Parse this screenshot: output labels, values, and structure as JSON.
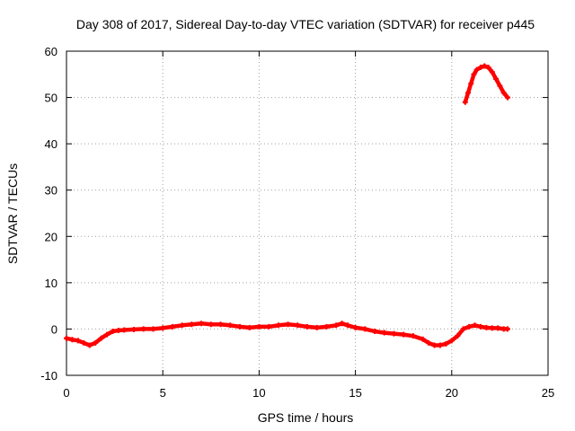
{
  "chart_data": {
    "type": "line",
    "title": "Day 308 of 2017, Sidereal Day-to-day VTEC variation (SDTVAR) for receiver p445",
    "xlabel": "GPS time / hours",
    "ylabel": "SDTVAR / TECUs",
    "xlim": [
      0,
      25
    ],
    "ylim": [
      -10,
      60
    ],
    "xticks": [
      0,
      5,
      10,
      15,
      20,
      25
    ],
    "yticks": [
      -10,
      0,
      10,
      20,
      30,
      40,
      50,
      60
    ],
    "grid": true,
    "series_color": "#ff0000",
    "series": [
      {
        "name": "SDTVAR segment 1",
        "x": [
          0.0,
          0.3,
          0.6,
          0.9,
          1.2,
          1.5,
          1.8,
          2.1,
          2.4,
          2.7,
          3.0,
          3.5,
          4.0,
          4.5,
          5.0,
          5.5,
          6.0,
          6.5,
          7.0,
          7.5,
          8.0,
          8.5,
          9.0,
          9.5,
          10.0,
          10.5,
          11.0,
          11.5,
          12.0,
          12.5,
          13.0,
          13.5,
          14.0,
          14.3,
          14.6,
          15.0,
          15.5,
          16.0,
          16.5,
          17.0,
          17.5,
          18.0,
          18.5,
          18.8,
          19.1,
          19.4,
          19.7,
          20.0,
          20.3,
          20.6,
          20.9,
          21.2,
          21.5,
          21.8,
          22.1,
          22.4,
          22.7,
          22.9
        ],
        "y": [
          -2.0,
          -2.3,
          -2.5,
          -3.0,
          -3.5,
          -3.0,
          -2.0,
          -1.2,
          -0.5,
          -0.3,
          -0.2,
          -0.1,
          0.0,
          0.0,
          0.2,
          0.5,
          0.8,
          1.0,
          1.2,
          1.0,
          1.0,
          0.8,
          0.5,
          0.3,
          0.5,
          0.5,
          0.8,
          1.0,
          0.8,
          0.5,
          0.3,
          0.5,
          0.8,
          1.2,
          0.8,
          0.3,
          0.0,
          -0.5,
          -0.8,
          -1.0,
          -1.2,
          -1.5,
          -2.2,
          -3.0,
          -3.5,
          -3.5,
          -3.2,
          -2.5,
          -1.5,
          0.0,
          0.5,
          0.8,
          0.5,
          0.3,
          0.2,
          0.2,
          0.0,
          0.0
        ]
      },
      {
        "name": "SDTVAR segment 2",
        "x": [
          20.7,
          20.85,
          21.0,
          21.15,
          21.3,
          21.5,
          21.7,
          21.9,
          22.1,
          22.3,
          22.5,
          22.7,
          22.9
        ],
        "y": [
          49.0,
          51.0,
          53.0,
          55.0,
          56.0,
          56.5,
          56.8,
          56.5,
          55.5,
          54.0,
          52.5,
          51.0,
          50.0
        ]
      }
    ]
  }
}
